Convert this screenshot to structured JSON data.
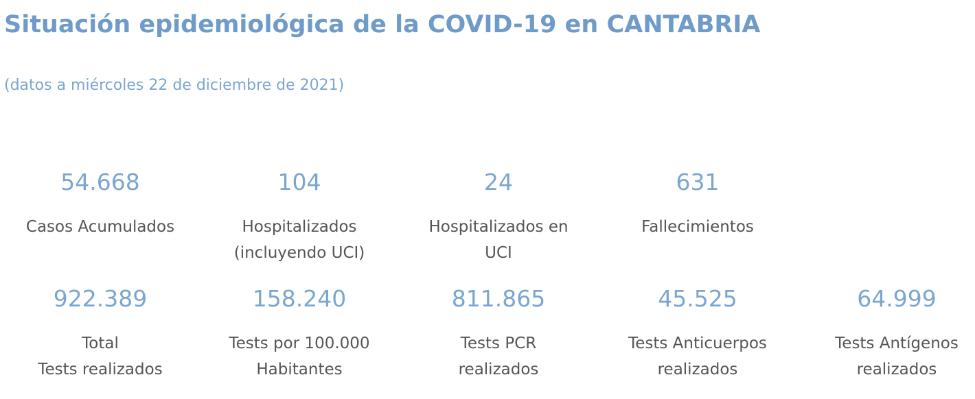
{
  "header": {
    "title": "Situación epidemiológica de la COVID-19 en CANTABRIA",
    "subtitle": "(datos a miércoles 22 de diciembre de 2021)"
  },
  "row1": [
    {
      "value": "54.668",
      "label": [
        "Casos Acumulados"
      ]
    },
    {
      "value": "104",
      "label": [
        "Hospitalizados",
        "(incluyendo UCI)"
      ]
    },
    {
      "value": "24",
      "label": [
        "Hospitalizados en",
        "UCI"
      ]
    },
    {
      "value": "631",
      "label": [
        "Fallecimientos"
      ]
    }
  ],
  "row2": [
    {
      "value": "922.389",
      "label": [
        "Total",
        "Tests realizados"
      ]
    },
    {
      "value": "158.240",
      "label": [
        "Tests por 100.000",
        "Habitantes"
      ]
    },
    {
      "value": "811.865",
      "label": [
        "Tests PCR",
        "realizados"
      ]
    },
    {
      "value": "45.525",
      "label": [
        "Tests Anticuerpos",
        "realizados"
      ]
    },
    {
      "value": "64.999",
      "label": [
        "Tests Antígenos",
        "realizados"
      ]
    }
  ]
}
